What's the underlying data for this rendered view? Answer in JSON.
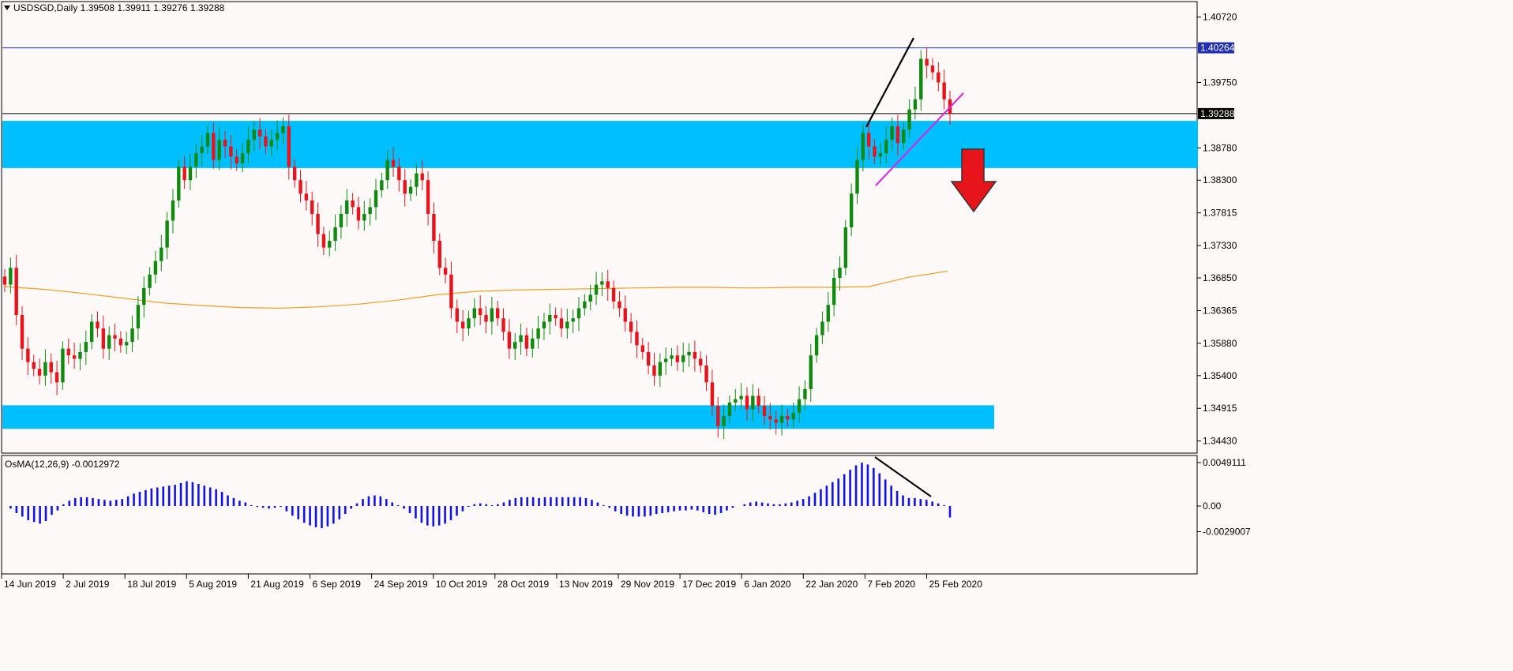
{
  "header": {
    "title": "USDSGD,Daily  1.39508 1.39911 1.39276 1.39288"
  },
  "osma_header": {
    "title": "OsMA(12,26,9) -0.0012972"
  },
  "colors": {
    "background": "#fdf9f9",
    "bull": "#0f8a0f",
    "bear": "#e8141b",
    "zone": "#00bfff",
    "ma": "#f0a020",
    "hline_blue": "#1f2fb3",
    "hline_black": "#000000",
    "trend_magenta": "#e020e0",
    "osma": "#1212e6",
    "arrow": "#e8141b"
  },
  "price_axis": {
    "ticks": [
      "1.40720",
      "1.39750",
      "1.38780",
      "1.38300",
      "1.37815",
      "1.37330",
      "1.36850",
      "1.36365",
      "1.35880",
      "1.35400",
      "1.34915",
      "1.34430"
    ],
    "tick_values": [
      1.4072,
      1.3975,
      1.3878,
      1.383,
      1.37815,
      1.3733,
      1.3685,
      1.36365,
      1.3588,
      1.354,
      1.34915,
      1.3443
    ],
    "level_blue": {
      "label": "1.40264",
      "value": 1.40264
    },
    "level_current": {
      "label": "1.39288",
      "value": 1.39288
    }
  },
  "osma_axis": {
    "ticks": [
      "0.0049111",
      "0.00",
      "-0.0029007"
    ],
    "tick_values": [
      0.0049111,
      0,
      -0.0029007
    ]
  },
  "time_axis": {
    "labels": [
      "14 Jun 2019",
      "2 Jul 2019",
      "18 Jul 2019",
      "5 Aug 2019",
      "21 Aug 2019",
      "6 Sep 2019",
      "24 Sep 2019",
      "10 Oct 2019",
      "28 Oct 2019",
      "13 Nov 2019",
      "29 Nov 2019",
      "17 Dec 2019",
      "6 Jan 2020",
      "22 Jan 2020",
      "7 Feb 2020",
      "25 Feb 2020"
    ]
  },
  "chart_data": {
    "type": "candlestick",
    "symbol": "USDSGD",
    "timeframe": "Daily",
    "ylim": [
      1.3425,
      1.4095
    ],
    "zones": [
      {
        "from": 1.3848,
        "to": 1.3918
      },
      {
        "from": 1.3461,
        "to": 1.3496
      }
    ],
    "closes": [
      1.3675,
      1.37,
      1.363,
      1.358,
      1.356,
      1.355,
      1.354,
      1.356,
      1.3545,
      1.353,
      1.358,
      1.357,
      1.3565,
      1.3575,
      1.359,
      1.362,
      1.361,
      1.358,
      1.36,
      1.3595,
      1.3585,
      1.359,
      1.361,
      1.3645,
      1.367,
      1.369,
      1.371,
      1.373,
      1.377,
      1.38,
      1.385,
      1.383,
      1.385,
      1.387,
      1.388,
      1.39,
      1.386,
      1.389,
      1.388,
      1.3865,
      1.3855,
      1.387,
      1.389,
      1.3905,
      1.3895,
      1.388,
      1.389,
      1.39,
      1.391,
      1.385,
      1.383,
      1.381,
      1.38,
      1.378,
      1.375,
      1.373,
      1.374,
      1.376,
      1.378,
      1.38,
      1.379,
      1.377,
      1.378,
      1.379,
      1.3815,
      1.383,
      1.386,
      1.385,
      1.383,
      1.381,
      1.382,
      1.384,
      1.383,
      1.378,
      1.374,
      1.37,
      1.369,
      1.364,
      1.362,
      1.361,
      1.3625,
      1.364,
      1.363,
      1.362,
      1.364,
      1.3625,
      1.3605,
      1.358,
      1.359,
      1.36,
      1.358,
      1.3595,
      1.361,
      1.362,
      1.363,
      1.3625,
      1.361,
      1.362,
      1.3625,
      1.364,
      1.365,
      1.366,
      1.3675,
      1.368,
      1.367,
      1.365,
      1.364,
      1.362,
      1.3605,
      1.3585,
      1.3575,
      1.3555,
      1.354,
      1.356,
      1.3565,
      1.357,
      1.356,
      1.357,
      1.3575,
      1.3565,
      1.3555,
      1.353,
      1.3495,
      1.3465,
      1.348,
      1.35,
      1.3505,
      1.351,
      1.349,
      1.351,
      1.3495,
      1.348,
      1.3475,
      1.347,
      1.348,
      1.3475,
      1.3485,
      1.3505,
      1.352,
      1.357,
      1.36,
      1.362,
      1.3645,
      1.3685,
      1.37,
      1.376,
      1.381,
      1.386,
      1.39,
      1.388,
      1.3865,
      1.387,
      1.389,
      1.391,
      1.3885,
      1.3905,
      1.3935,
      1.395,
      1.401,
      1.4,
      1.399,
      1.3975,
      1.395,
      1.3929
    ],
    "ma_values": [
      1.3672,
      1.3668,
      1.3662,
      1.3655,
      1.3648,
      1.3644,
      1.3641,
      1.364,
      1.3642,
      1.3646,
      1.3652,
      1.366,
      1.3665,
      1.3667,
      1.3668,
      1.3669,
      1.367,
      1.3671,
      1.3671,
      1.367,
      1.3671,
      1.3671,
      1.3672,
      1.3686,
      1.3695
    ],
    "osma_values": [
      0.0,
      -0.0003,
      -0.0008,
      -0.0012,
      -0.0016,
      -0.0018,
      -0.002,
      -0.0017,
      -0.001,
      -0.0005,
      0.0002,
      0.0006,
      0.0009,
      0.001,
      0.001,
      0.0009,
      0.0008,
      0.0007,
      0.0006,
      0.0007,
      0.0008,
      0.0011,
      0.0014,
      0.0016,
      0.0018,
      0.002,
      0.0021,
      0.0022,
      0.0023,
      0.0024,
      0.0026,
      0.0028,
      0.0027,
      0.0025,
      0.0023,
      0.0021,
      0.0019,
      0.0016,
      0.0012,
      0.0009,
      0.0006,
      0.0004,
      0.0001,
      -0.0001,
      -0.0002,
      -0.0003,
      -0.0002,
      -0.0001,
      -0.0006,
      -0.0011,
      -0.0015,
      -0.0019,
      -0.0022,
      -0.0024,
      -0.0025,
      -0.0023,
      -0.002,
      -0.0015,
      -0.0009,
      -0.0003,
      0.0003,
      0.0008,
      0.0011,
      0.0012,
      0.0011,
      0.0008,
      0.0004,
      0.0001,
      -0.0003,
      -0.0008,
      -0.0014,
      -0.0019,
      -0.0022,
      -0.0023,
      -0.0022,
      -0.002,
      -0.0016,
      -0.0011,
      -0.0006,
      -0.0001,
      0.0002,
      0.0003,
      0.0002,
      0.0001,
      0.0002,
      0.0004,
      0.0007,
      0.0009,
      0.001,
      0.001,
      0.001,
      0.0009,
      0.001,
      0.001,
      0.001,
      0.001,
      0.001,
      0.001,
      0.001,
      0.0009,
      0.0007,
      0.0004,
      0.0001,
      -0.0002,
      -0.0006,
      -0.0009,
      -0.0011,
      -0.0012,
      -0.0012,
      -0.0012,
      -0.0011,
      -0.0009,
      -0.0008,
      -0.0007,
      -0.0006,
      -0.0005,
      -0.0005,
      -0.0004,
      -0.0005,
      -0.0007,
      -0.0009,
      -0.001,
      -0.0008,
      -0.0005,
      -0.0002,
      0.0,
      0.0002,
      0.0004,
      0.0005,
      0.0004,
      0.0003,
      0.0002,
      0.0002,
      0.0003,
      0.0004,
      0.0006,
      0.0008,
      0.0011,
      0.0015,
      0.0019,
      0.0023,
      0.0027,
      0.0031,
      0.0036,
      0.0041,
      0.0046,
      0.0049,
      0.0047,
      0.0043,
      0.0037,
      0.003,
      0.0023,
      0.0017,
      0.0012,
      0.0009,
      0.0009,
      0.0008,
      0.0007,
      0.0005,
      0.0003,
      0.0001,
      -0.0013
    ]
  }
}
